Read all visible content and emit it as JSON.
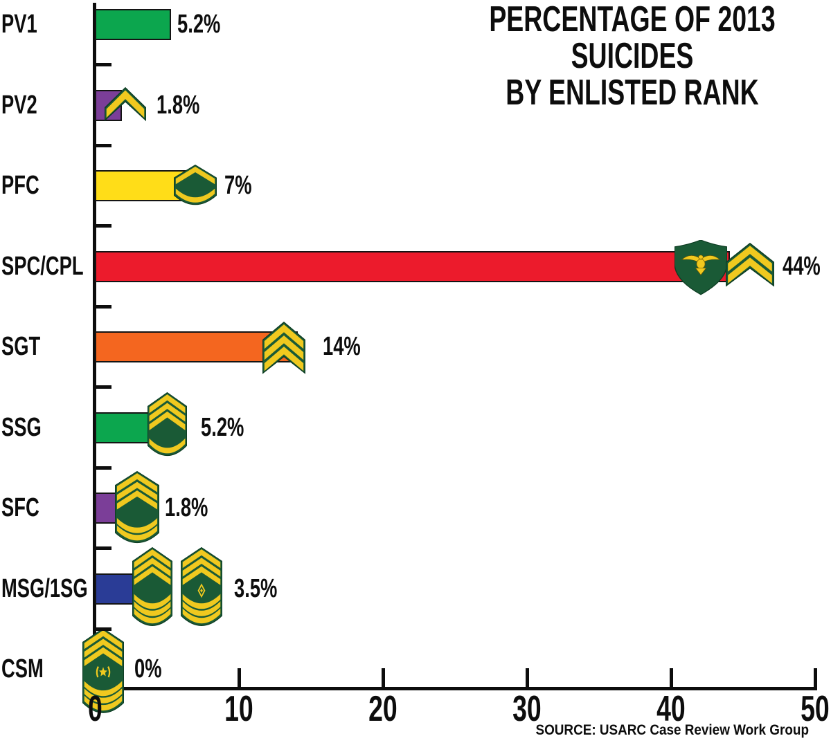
{
  "title": {
    "line1": "PERCENTAGE OF 2013 SUICIDES",
    "line2": "BY ENLISTED RANK"
  },
  "source": {
    "text": "SOURCE: USARC Case Review Work Group"
  },
  "chart_data": {
    "type": "bar",
    "orientation": "horizontal",
    "title": "PERCENTAGE OF 2013 SUICIDES BY ENLISTED RANK",
    "categories": [
      "PV1",
      "PV2",
      "PFC",
      "SPC/CPL",
      "SGT",
      "SSG",
      "SFC",
      "MSG/1SG",
      "CSM"
    ],
    "values": [
      5.2,
      1.8,
      7,
      44,
      14,
      5.2,
      1.8,
      3.5,
      0
    ],
    "value_labels": [
      "5.2%",
      "1.8%",
      "7%",
      "44%",
      "14%",
      "5.2%",
      "1.8%",
      "3.5%",
      "0%"
    ],
    "bar_colors": [
      "#0CA64E",
      "#7B3E98",
      "#FFDD18",
      "#EC1B2C",
      "#F4661F",
      "#0CA64E",
      "#7B3E98",
      "#2A3C96",
      "#0CA64E"
    ],
    "bar_icons": [
      [],
      [
        "pv2-chevron-icon"
      ],
      [
        "pfc-insignia-icon"
      ],
      [
        "spc-insignia-icon",
        "cpl-insignia-icon"
      ],
      [
        "sgt-insignia-icon"
      ],
      [
        "ssg-insignia-icon"
      ],
      [
        "sfc-insignia-icon"
      ],
      [
        "msg-insignia-icon",
        "first-sergeant-insignia-icon"
      ],
      [
        "csm-insignia-icon"
      ]
    ],
    "xlim": [
      0,
      50
    ],
    "x_ticks": [
      0,
      10,
      20,
      30,
      40,
      50
    ],
    "x_tick_labels": [
      "0",
      "10",
      "20",
      "30",
      "40",
      "50"
    ],
    "grid": false,
    "legend": false,
    "source": "SOURCE: USARC Case Review Work Group",
    "insignia_colors": {
      "gold": "#F0C91F",
      "green": "#1A5A36"
    },
    "axis_color": "#0d0d0d"
  }
}
